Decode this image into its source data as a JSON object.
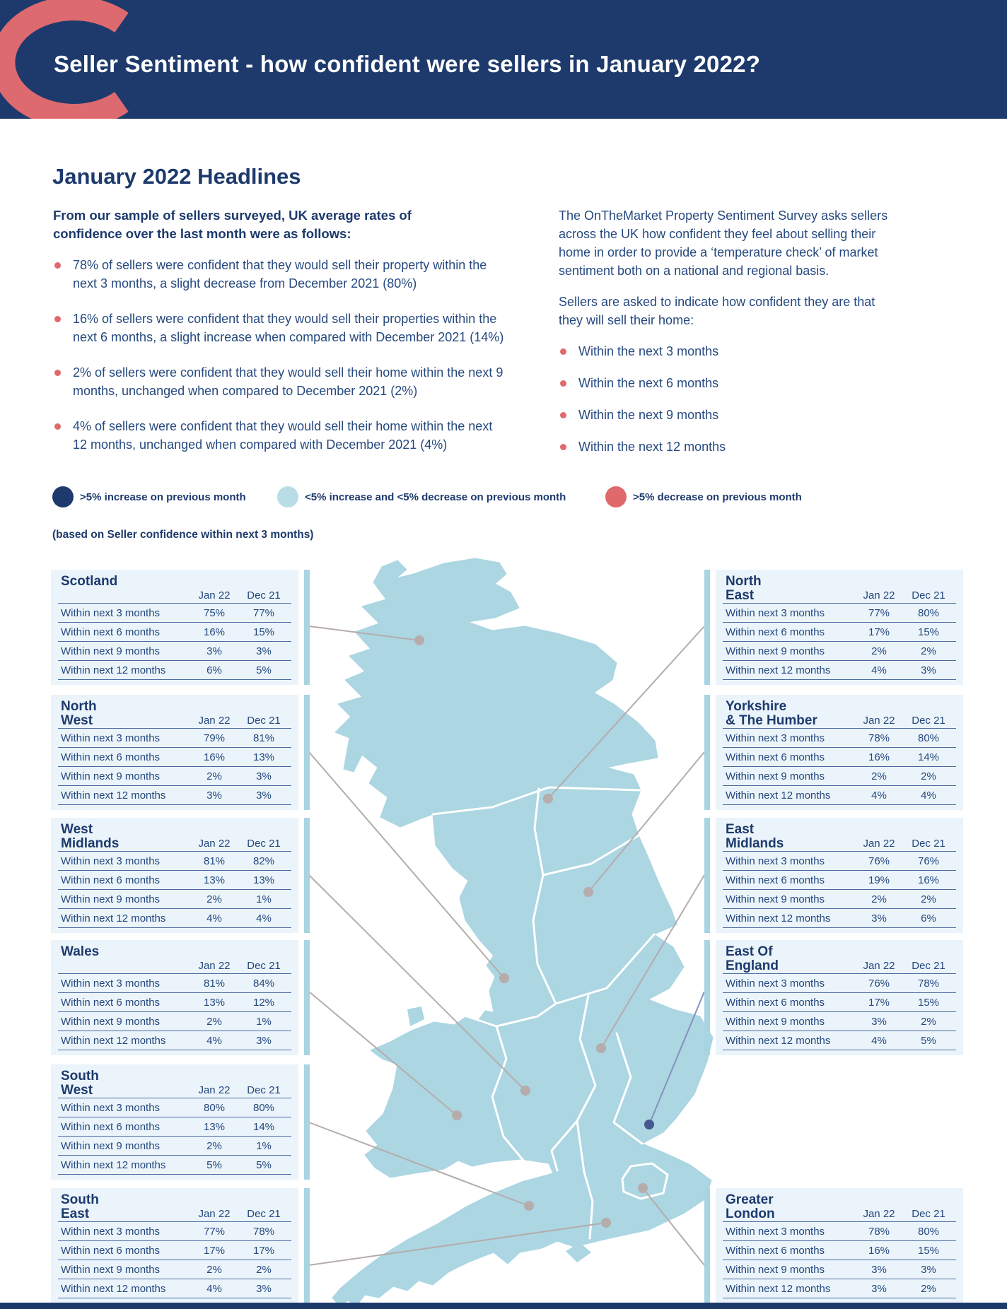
{
  "colors": {
    "navy": "#1e3a6d",
    "coral": "#e0696c",
    "light_blue": "#abd6e2"
  },
  "header": {
    "title": "Seller Sentiment - how confident were sellers in January 2022?"
  },
  "headlines": {
    "title": "January 2022 Headlines",
    "intro": "From our sample of sellers surveyed, UK average rates of confidence over the last month were as follows:",
    "bullets": [
      "78% of sellers were confident that they would sell their property within the next 3 months, a slight decrease from December 2021 (80%)",
      "16% of sellers were confident that they would sell their properties within the next 6 months, a slight increase when compared with December 2021 (14%)",
      "2% of sellers were confident that they would sell their home within the next 9 months, unchanged when compared to December 2021 (2%)",
      "4% of sellers were confident that they would sell their home within the next 12 months, unchanged when compared with December 2021 (4%)"
    ]
  },
  "about": {
    "para1": "The OnTheMarket Property Sentiment Survey asks sellers across the UK how confident they feel about selling their home in order to provide a ‘temperature check’ of market sentiment both on a national and regional basis.",
    "para2": "Sellers are asked to indicate how confident they are that they will sell their home:",
    "bullets": [
      "Within the next 3 months",
      "Within the next 6 months",
      "Within the next 9 months",
      "Within the next 12 months"
    ]
  },
  "legend": {
    "increase_label": ">5% increase on previous month",
    "neutral_label": "<5% increase and <5% decrease on previous month",
    "decrease_label": ">5% decrease on previous month",
    "note": "(based on Seller confidence within next 3 months)"
  },
  "table": {
    "col_headers": [
      "Jan 22",
      "Dec 21"
    ],
    "row_labels": [
      "Within next 3 months",
      "Within next 6 months",
      "Within next 9 months",
      "Within next 12 months"
    ]
  },
  "regions": [
    {
      "name1": "Scotland",
      "name2": "",
      "jan": [
        "75%",
        "16%",
        "3%",
        "6%"
      ],
      "dec": [
        "77%",
        "15%",
        "3%",
        "5%"
      ]
    },
    {
      "name1": "North",
      "name2": "West",
      "jan": [
        "79%",
        "16%",
        "2%",
        "3%"
      ],
      "dec": [
        "81%",
        "13%",
        "3%",
        "3%"
      ]
    },
    {
      "name1": "West",
      "name2": "Midlands",
      "jan": [
        "81%",
        "13%",
        "2%",
        "4%"
      ],
      "dec": [
        "82%",
        "13%",
        "1%",
        "4%"
      ]
    },
    {
      "name1": "Wales",
      "name2": "",
      "jan": [
        "81%",
        "13%",
        "2%",
        "4%"
      ],
      "dec": [
        "84%",
        "12%",
        "1%",
        "3%"
      ]
    },
    {
      "name1": "South",
      "name2": "West",
      "jan": [
        "80%",
        "13%",
        "2%",
        "5%"
      ],
      "dec": [
        "80%",
        "14%",
        "1%",
        "5%"
      ]
    },
    {
      "name1": "South",
      "name2": "East",
      "jan": [
        "77%",
        "17%",
        "2%",
        "4%"
      ],
      "dec": [
        "78%",
        "17%",
        "2%",
        "3%"
      ]
    },
    {
      "name1": "North",
      "name2": "East",
      "jan": [
        "77%",
        "17%",
        "2%",
        "4%"
      ],
      "dec": [
        "80%",
        "15%",
        "2%",
        "3%"
      ]
    },
    {
      "name1": "Yorkshire",
      "name2": "& The Humber",
      "jan": [
        "78%",
        "16%",
        "2%",
        "4%"
      ],
      "dec": [
        "80%",
        "14%",
        "2%",
        "4%"
      ]
    },
    {
      "name1": "East",
      "name2": "Midlands",
      "jan": [
        "76%",
        "19%",
        "2%",
        "3%"
      ],
      "dec": [
        "76%",
        "16%",
        "2%",
        "6%"
      ]
    },
    {
      "name1": "East Of",
      "name2": "England",
      "jan": [
        "76%",
        "17%",
        "3%",
        "4%"
      ],
      "dec": [
        "78%",
        "15%",
        "2%",
        "5%"
      ]
    },
    {
      "name1": "Greater",
      "name2": "London",
      "jan": [
        "78%",
        "16%",
        "3%",
        "3%"
      ],
      "dec": [
        "80%",
        "15%",
        "3%",
        "2%"
      ]
    }
  ]
}
